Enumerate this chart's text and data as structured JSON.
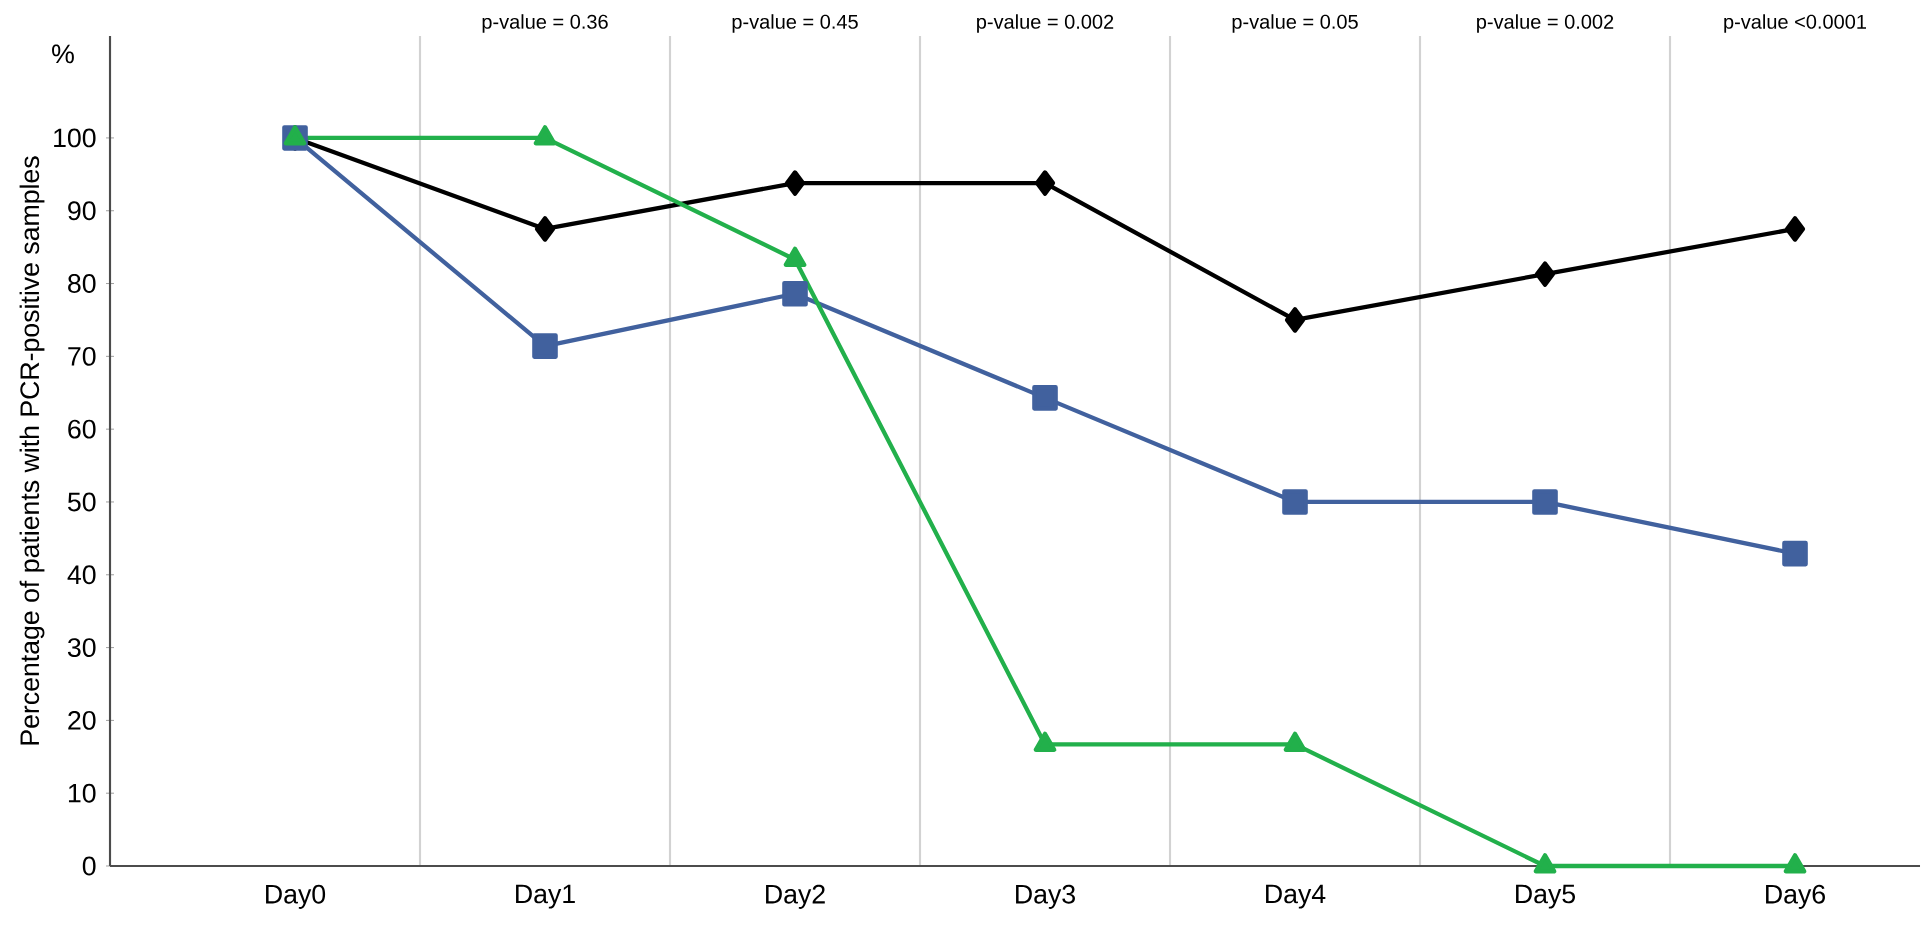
{
  "chart_data": {
    "type": "line",
    "ylabel": "Percentage of patients with PCR-positive samples",
    "categories": [
      "Day0",
      "Day1",
      "Day2",
      "Day3",
      "Day4",
      "Day5",
      "Day6"
    ],
    "series": [
      {
        "color": "#000000",
        "marker": "diamond",
        "values": [
          100,
          87.5,
          93.8,
          93.8,
          75,
          81.3,
          87.5
        ]
      },
      {
        "color": "#41619e",
        "marker": "square",
        "values": [
          100,
          71.4,
          78.6,
          64.3,
          50,
          50,
          42.9
        ]
      },
      {
        "color": "#22b04b",
        "marker": "triangle",
        "values": [
          100,
          100,
          83.3,
          16.7,
          16.7,
          0,
          0
        ]
      }
    ],
    "ylim": [
      0,
      114
    ],
    "yticks": [
      0,
      10,
      20,
      30,
      40,
      50,
      60,
      70,
      80,
      90,
      100
    ],
    "grid": "x",
    "line_style": "solid",
    "annotations": [
      "%",
      "p-value = 0.36",
      "p-value = 0.45",
      "p-value = 0.002",
      "p-value = 0.05",
      "p-value = 0.002",
      "p-value <0.0001"
    ]
  }
}
